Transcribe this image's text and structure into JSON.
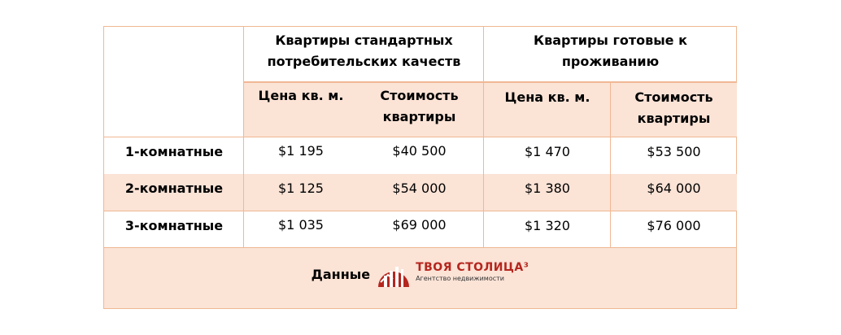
{
  "header": {
    "group1": "Квартиры стандартных потребительских качеств",
    "group2": "Квартиры готовые к проживанию",
    "sub": [
      "Цена кв. м.",
      "Стоимость квартиры",
      "Цена кв. м.",
      "Стоимость квартиры"
    ]
  },
  "rows": [
    {
      "label": "1-комнатные",
      "values": [
        "$1 195",
        "$40 500",
        "$1 470",
        "$53 500"
      ]
    },
    {
      "label": "2-комнатные",
      "values": [
        "$1 125",
        "$54 000",
        "$1 380",
        "$64 000"
      ]
    },
    {
      "label": "3-комнатные",
      "values": [
        "$1 035",
        "$69 000",
        "$1 320",
        "$76 000"
      ]
    }
  ],
  "footer": {
    "label": "Данные",
    "logo_brand": "ТВОЯ СТОЛИЦА³",
    "logo_tagline": "Агентство недвижимости"
  },
  "colors": {
    "border": "#f0b894",
    "shade": "#fbe3d6",
    "brand": "#b5261e"
  }
}
